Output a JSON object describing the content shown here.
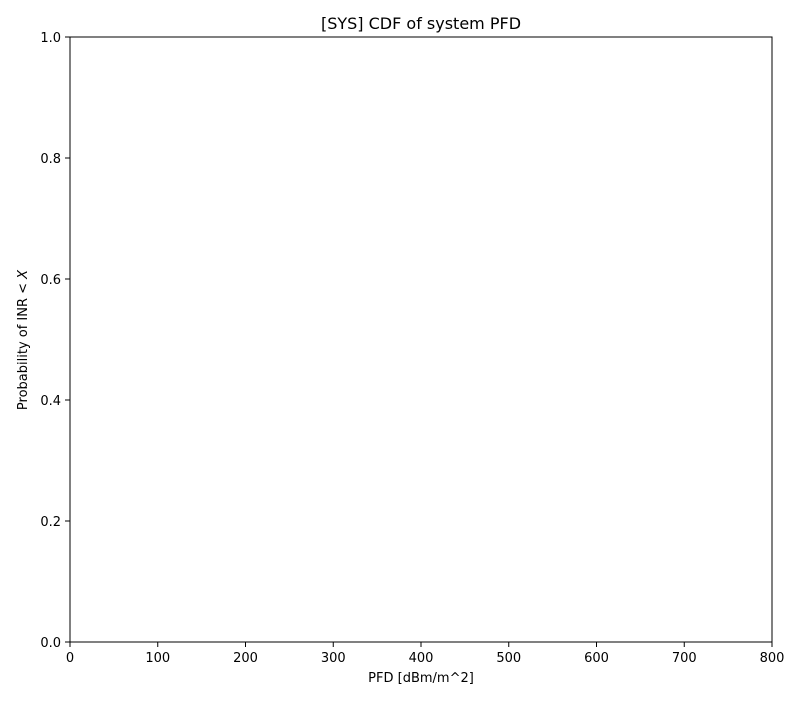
{
  "chart_data": {
    "type": "line",
    "title": "[SYS] CDF of system PFD",
    "xlabel": "PFD [dBm/m^2]",
    "ylabel_prefix": "Probability of INR < ",
    "ylabel_var": "X",
    "xlim": [
      0,
      800
    ],
    "ylim": [
      0.0,
      1.0
    ],
    "xticks": [
      0,
      100,
      200,
      300,
      400,
      500,
      600,
      700,
      800
    ],
    "xtick_labels": [
      "0",
      "100",
      "200",
      "300",
      "400",
      "500",
      "600",
      "700",
      "800"
    ],
    "yticks": [
      0.0,
      0.2,
      0.4,
      0.6,
      0.8,
      1.0
    ],
    "ytick_labels": [
      "0.0",
      "0.2",
      "0.4",
      "0.6",
      "0.8",
      "1.0"
    ],
    "grid": false,
    "series": []
  },
  "colors": {
    "axes": "#000000",
    "background": "#ffffff"
  }
}
